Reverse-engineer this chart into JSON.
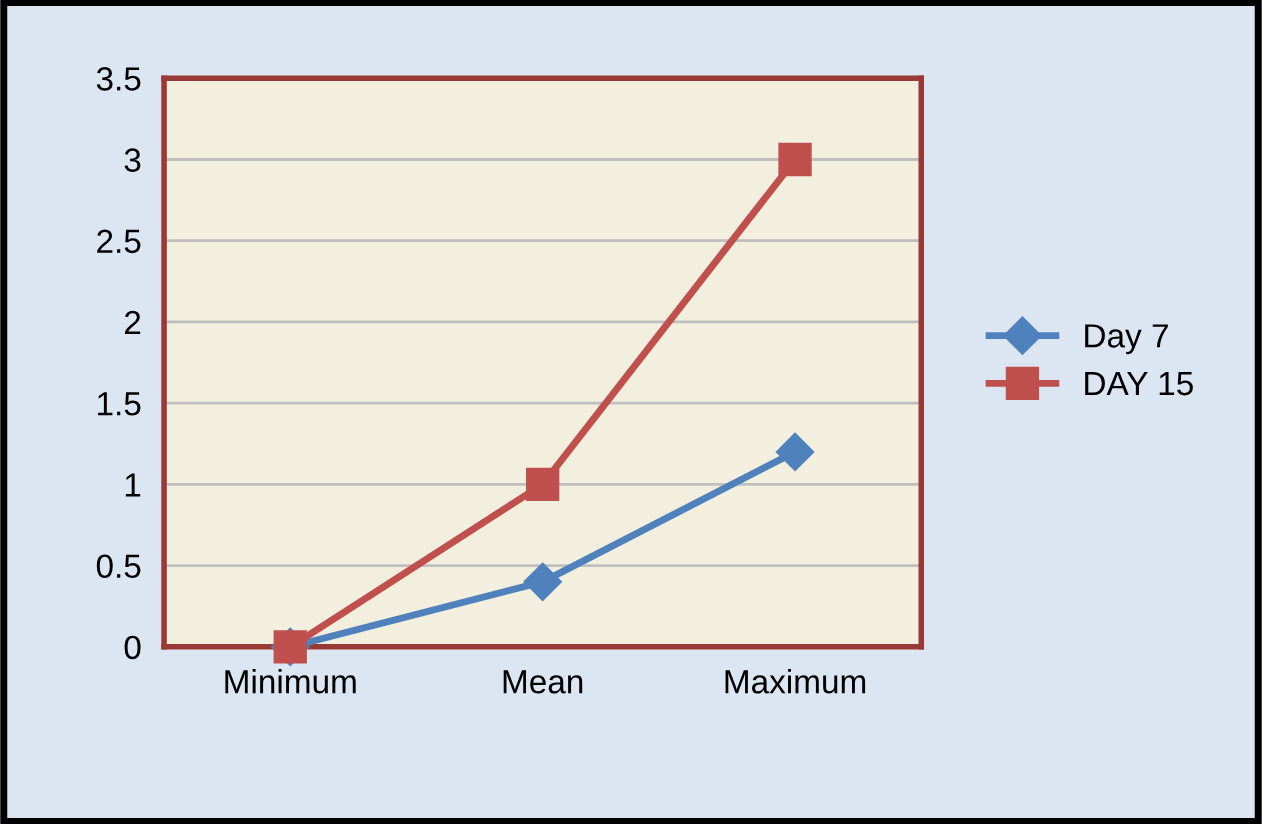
{
  "chart_data": {
    "type": "line",
    "categories": [
      "Minimum",
      "Mean",
      "Maximum"
    ],
    "series": [
      {
        "name": "Day 7",
        "color": "#4f81bd",
        "values": [
          0,
          0.4,
          1.2
        ],
        "marker": "diamond"
      },
      {
        "name": "DAY 15",
        "color": "#c0504d",
        "values": [
          0,
          1,
          3
        ],
        "marker": "square"
      }
    ],
    "ylim": [
      0,
      3.5
    ],
    "yticks": [
      0,
      0.5,
      1,
      1.5,
      2,
      2.5,
      3,
      3.5
    ],
    "grid": "y",
    "legend": "right",
    "line_style": "solid"
  }
}
